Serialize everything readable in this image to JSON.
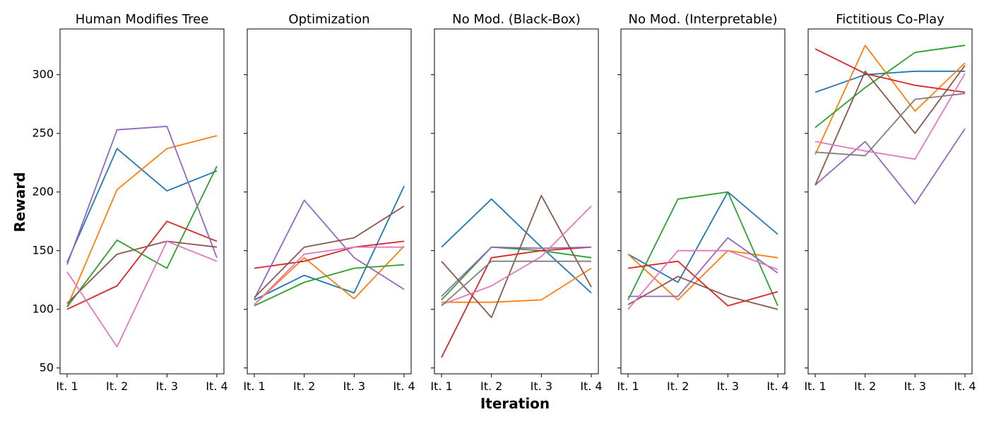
{
  "figure": {
    "ylabel": "Reward",
    "xlabel": "Iteration",
    "colors": [
      "#1f77b4",
      "#ff7f0e",
      "#2ca02c",
      "#d62728",
      "#9467bd",
      "#8c564b",
      "#e377c2",
      "#7f7f7f"
    ]
  },
  "chart_data": [
    {
      "type": "line",
      "title": "Human Modifies Tree",
      "categories": [
        "It. 1",
        "It. 2",
        "It. 3",
        "It. 4"
      ],
      "ylim": [
        45,
        339
      ],
      "yticks": [
        50,
        100,
        150,
        200,
        250,
        300
      ],
      "series": [
        {
          "values": [
            140,
            237,
            201,
            218
          ]
        },
        {
          "values": [
            102,
            202,
            237,
            248
          ]
        },
        {
          "values": [
            102,
            159,
            135,
            222
          ]
        },
        {
          "values": [
            100,
            120,
            175,
            158
          ]
        },
        {
          "values": [
            138,
            253,
            256,
            144
          ]
        },
        {
          "values": [
            105,
            147,
            158,
            153
          ]
        },
        {
          "values": [
            132,
            68,
            158,
            141
          ]
        }
      ]
    },
    {
      "type": "line",
      "title": "Optimization",
      "categories": [
        "It. 1",
        "It. 2",
        "It. 3",
        "It. 4"
      ],
      "ylim": [
        45,
        339
      ],
      "yticks": [
        50,
        100,
        150,
        200,
        250,
        300
      ],
      "series": [
        {
          "values": [
            108,
            129,
            114,
            205
          ]
        },
        {
          "values": [
            104,
            144,
            109,
            154
          ]
        },
        {
          "values": [
            103,
            123,
            135,
            138
          ]
        },
        {
          "values": [
            135,
            141,
            153,
            158
          ]
        },
        {
          "values": [
            109,
            193,
            144,
            117
          ]
        },
        {
          "values": [
            110,
            153,
            161,
            188
          ]
        },
        {
          "values": [
            104,
            147,
            153,
            153
          ]
        }
      ]
    },
    {
      "type": "line",
      "title": "No Mod. (Black-Box)",
      "categories": [
        "It. 1",
        "It. 2",
        "It. 3",
        "It. 4"
      ],
      "ylim": [
        45,
        339
      ],
      "yticks": [
        50,
        100,
        150,
        200,
        250,
        300
      ],
      "series": [
        {
          "values": [
            153,
            194,
            153,
            114
          ]
        },
        {
          "values": [
            106,
            106,
            108,
            135
          ]
        },
        {
          "values": [
            108,
            153,
            150,
            144
          ]
        },
        {
          "values": [
            59,
            144,
            150,
            153
          ]
        },
        {
          "values": [
            111,
            153,
            152,
            153
          ]
        },
        {
          "values": [
            141,
            93,
            197,
            119
          ]
        },
        {
          "values": [
            104,
            120,
            145,
            188
          ]
        },
        {
          "values": [
            103,
            141,
            141,
            141
          ]
        }
      ]
    },
    {
      "type": "line",
      "title": "No Mod. (Interpretable)",
      "categories": [
        "It. 1",
        "It. 2",
        "It. 3",
        "It. 4"
      ],
      "ylim": [
        45,
        339
      ],
      "yticks": [
        50,
        100,
        150,
        200,
        250,
        300
      ],
      "series": [
        {
          "values": [
            147,
            123,
            200,
            164
          ]
        },
        {
          "values": [
            147,
            108,
            150,
            144
          ]
        },
        {
          "values": [
            108,
            194,
            200,
            103
          ]
        },
        {
          "values": [
            135,
            141,
            103,
            115
          ]
        },
        {
          "values": [
            111,
            111,
            161,
            131
          ]
        },
        {
          "values": [
            104,
            128,
            111,
            100
          ]
        },
        {
          "values": [
            100,
            150,
            150,
            134
          ]
        }
      ]
    },
    {
      "type": "line",
      "title": "Fictitious Co-Play",
      "categories": [
        "It. 1",
        "It. 2",
        "It. 3",
        "It. 4"
      ],
      "ylim": [
        45,
        339
      ],
      "yticks": [
        50,
        100,
        150,
        200,
        250,
        300
      ],
      "series": [
        {
          "values": [
            285,
            300,
            303,
            303
          ]
        },
        {
          "values": [
            232,
            325,
            269,
            310
          ]
        },
        {
          "values": [
            255,
            289,
            319,
            325
          ]
        },
        {
          "values": [
            322,
            301,
            291,
            285
          ]
        },
        {
          "values": [
            206,
            243,
            190,
            254
          ]
        },
        {
          "values": [
            206,
            303,
            250,
            308
          ]
        },
        {
          "values": [
            243,
            235,
            228,
            301
          ]
        },
        {
          "values": [
            234,
            231,
            279,
            284
          ]
        }
      ]
    }
  ]
}
